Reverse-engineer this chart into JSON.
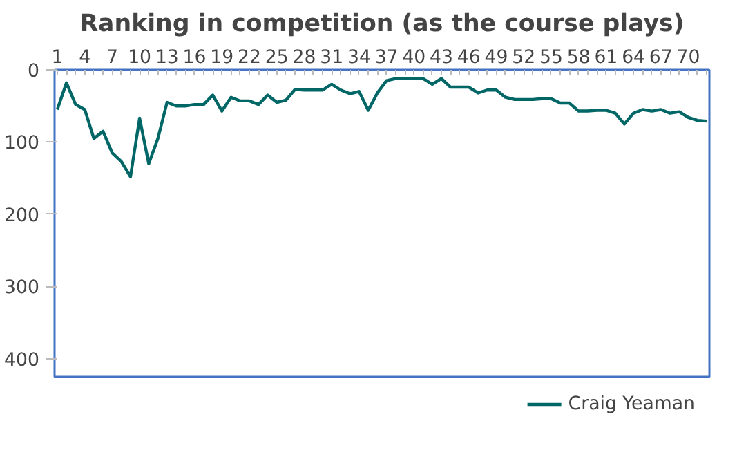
{
  "chart_data": {
    "type": "line",
    "title": "Ranking in competition (as the course plays)",
    "categories": [
      "1",
      null,
      null,
      "4",
      null,
      null,
      "7",
      null,
      null,
      "10",
      null,
      null,
      "13",
      null,
      null,
      "16",
      null,
      null,
      "19",
      null,
      null,
      "22",
      null,
      null,
      "25",
      null,
      null,
      "28",
      null,
      null,
      "31",
      null,
      null,
      "34",
      null,
      null,
      "37",
      null,
      null,
      "40",
      null,
      null,
      "43",
      null,
      null,
      "46",
      null,
      null,
      "49",
      null,
      null,
      "52",
      null,
      null,
      "55",
      null,
      null,
      "58",
      null,
      null,
      "61",
      null,
      null,
      "64",
      null,
      null,
      "67",
      null,
      null,
      "70",
      null,
      null
    ],
    "series": [
      {
        "name": "Craig Yeaman",
        "color": "#006666",
        "values": [
          55,
          18,
          48,
          55,
          95,
          85,
          115,
          127,
          148,
          67,
          130,
          95,
          45,
          50,
          50,
          48,
          48,
          35,
          57,
          38,
          43,
          43,
          48,
          35,
          45,
          42,
          27,
          28,
          28,
          28,
          20,
          28,
          33,
          30,
          56,
          32,
          15,
          12,
          12,
          12,
          12,
          20,
          12,
          24,
          24,
          24,
          32,
          28,
          28,
          38,
          41,
          41,
          41,
          40,
          40,
          46,
          46,
          57,
          57,
          56,
          56,
          60,
          75,
          60,
          55,
          57,
          55,
          60,
          58,
          66,
          70,
          71
        ]
      }
    ],
    "ylim": [
      425,
      0
    ],
    "yticks": [
      0,
      100,
      200,
      300,
      400
    ],
    "legend": "bottom",
    "marker": "none",
    "line_style": "solid"
  }
}
